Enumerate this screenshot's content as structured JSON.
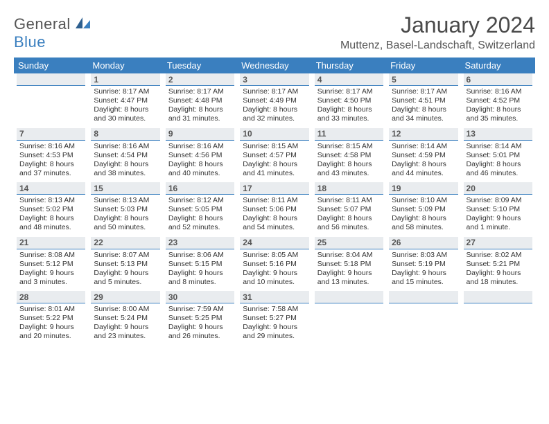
{
  "logo": {
    "text1": "General",
    "text2": "Blue"
  },
  "title": "January 2024",
  "location": "Muttenz, Basel-Landschaft, Switzerland",
  "colors": {
    "header_bg": "#3a7fbf",
    "daynum_bg": "#e9ecef",
    "text": "#333333",
    "title_text": "#4a4a4a"
  },
  "days_of_week": [
    "Sunday",
    "Monday",
    "Tuesday",
    "Wednesday",
    "Thursday",
    "Friday",
    "Saturday"
  ],
  "weeks": [
    [
      null,
      {
        "n": "1",
        "sr": "Sunrise: 8:17 AM",
        "ss": "Sunset: 4:47 PM",
        "dl": "Daylight: 8 hours and 30 minutes."
      },
      {
        "n": "2",
        "sr": "Sunrise: 8:17 AM",
        "ss": "Sunset: 4:48 PM",
        "dl": "Daylight: 8 hours and 31 minutes."
      },
      {
        "n": "3",
        "sr": "Sunrise: 8:17 AM",
        "ss": "Sunset: 4:49 PM",
        "dl": "Daylight: 8 hours and 32 minutes."
      },
      {
        "n": "4",
        "sr": "Sunrise: 8:17 AM",
        "ss": "Sunset: 4:50 PM",
        "dl": "Daylight: 8 hours and 33 minutes."
      },
      {
        "n": "5",
        "sr": "Sunrise: 8:17 AM",
        "ss": "Sunset: 4:51 PM",
        "dl": "Daylight: 8 hours and 34 minutes."
      },
      {
        "n": "6",
        "sr": "Sunrise: 8:16 AM",
        "ss": "Sunset: 4:52 PM",
        "dl": "Daylight: 8 hours and 35 minutes."
      }
    ],
    [
      {
        "n": "7",
        "sr": "Sunrise: 8:16 AM",
        "ss": "Sunset: 4:53 PM",
        "dl": "Daylight: 8 hours and 37 minutes."
      },
      {
        "n": "8",
        "sr": "Sunrise: 8:16 AM",
        "ss": "Sunset: 4:54 PM",
        "dl": "Daylight: 8 hours and 38 minutes."
      },
      {
        "n": "9",
        "sr": "Sunrise: 8:16 AM",
        "ss": "Sunset: 4:56 PM",
        "dl": "Daylight: 8 hours and 40 minutes."
      },
      {
        "n": "10",
        "sr": "Sunrise: 8:15 AM",
        "ss": "Sunset: 4:57 PM",
        "dl": "Daylight: 8 hours and 41 minutes."
      },
      {
        "n": "11",
        "sr": "Sunrise: 8:15 AM",
        "ss": "Sunset: 4:58 PM",
        "dl": "Daylight: 8 hours and 43 minutes."
      },
      {
        "n": "12",
        "sr": "Sunrise: 8:14 AM",
        "ss": "Sunset: 4:59 PM",
        "dl": "Daylight: 8 hours and 44 minutes."
      },
      {
        "n": "13",
        "sr": "Sunrise: 8:14 AM",
        "ss": "Sunset: 5:01 PM",
        "dl": "Daylight: 8 hours and 46 minutes."
      }
    ],
    [
      {
        "n": "14",
        "sr": "Sunrise: 8:13 AM",
        "ss": "Sunset: 5:02 PM",
        "dl": "Daylight: 8 hours and 48 minutes."
      },
      {
        "n": "15",
        "sr": "Sunrise: 8:13 AM",
        "ss": "Sunset: 5:03 PM",
        "dl": "Daylight: 8 hours and 50 minutes."
      },
      {
        "n": "16",
        "sr": "Sunrise: 8:12 AM",
        "ss": "Sunset: 5:05 PM",
        "dl": "Daylight: 8 hours and 52 minutes."
      },
      {
        "n": "17",
        "sr": "Sunrise: 8:11 AM",
        "ss": "Sunset: 5:06 PM",
        "dl": "Daylight: 8 hours and 54 minutes."
      },
      {
        "n": "18",
        "sr": "Sunrise: 8:11 AM",
        "ss": "Sunset: 5:07 PM",
        "dl": "Daylight: 8 hours and 56 minutes."
      },
      {
        "n": "19",
        "sr": "Sunrise: 8:10 AM",
        "ss": "Sunset: 5:09 PM",
        "dl": "Daylight: 8 hours and 58 minutes."
      },
      {
        "n": "20",
        "sr": "Sunrise: 8:09 AM",
        "ss": "Sunset: 5:10 PM",
        "dl": "Daylight: 9 hours and 1 minute."
      }
    ],
    [
      {
        "n": "21",
        "sr": "Sunrise: 8:08 AM",
        "ss": "Sunset: 5:12 PM",
        "dl": "Daylight: 9 hours and 3 minutes."
      },
      {
        "n": "22",
        "sr": "Sunrise: 8:07 AM",
        "ss": "Sunset: 5:13 PM",
        "dl": "Daylight: 9 hours and 5 minutes."
      },
      {
        "n": "23",
        "sr": "Sunrise: 8:06 AM",
        "ss": "Sunset: 5:15 PM",
        "dl": "Daylight: 9 hours and 8 minutes."
      },
      {
        "n": "24",
        "sr": "Sunrise: 8:05 AM",
        "ss": "Sunset: 5:16 PM",
        "dl": "Daylight: 9 hours and 10 minutes."
      },
      {
        "n": "25",
        "sr": "Sunrise: 8:04 AM",
        "ss": "Sunset: 5:18 PM",
        "dl": "Daylight: 9 hours and 13 minutes."
      },
      {
        "n": "26",
        "sr": "Sunrise: 8:03 AM",
        "ss": "Sunset: 5:19 PM",
        "dl": "Daylight: 9 hours and 15 minutes."
      },
      {
        "n": "27",
        "sr": "Sunrise: 8:02 AM",
        "ss": "Sunset: 5:21 PM",
        "dl": "Daylight: 9 hours and 18 minutes."
      }
    ],
    [
      {
        "n": "28",
        "sr": "Sunrise: 8:01 AM",
        "ss": "Sunset: 5:22 PM",
        "dl": "Daylight: 9 hours and 20 minutes."
      },
      {
        "n": "29",
        "sr": "Sunrise: 8:00 AM",
        "ss": "Sunset: 5:24 PM",
        "dl": "Daylight: 9 hours and 23 minutes."
      },
      {
        "n": "30",
        "sr": "Sunrise: 7:59 AM",
        "ss": "Sunset: 5:25 PM",
        "dl": "Daylight: 9 hours and 26 minutes."
      },
      {
        "n": "31",
        "sr": "Sunrise: 7:58 AM",
        "ss": "Sunset: 5:27 PM",
        "dl": "Daylight: 9 hours and 29 minutes."
      },
      null,
      null,
      null
    ]
  ]
}
